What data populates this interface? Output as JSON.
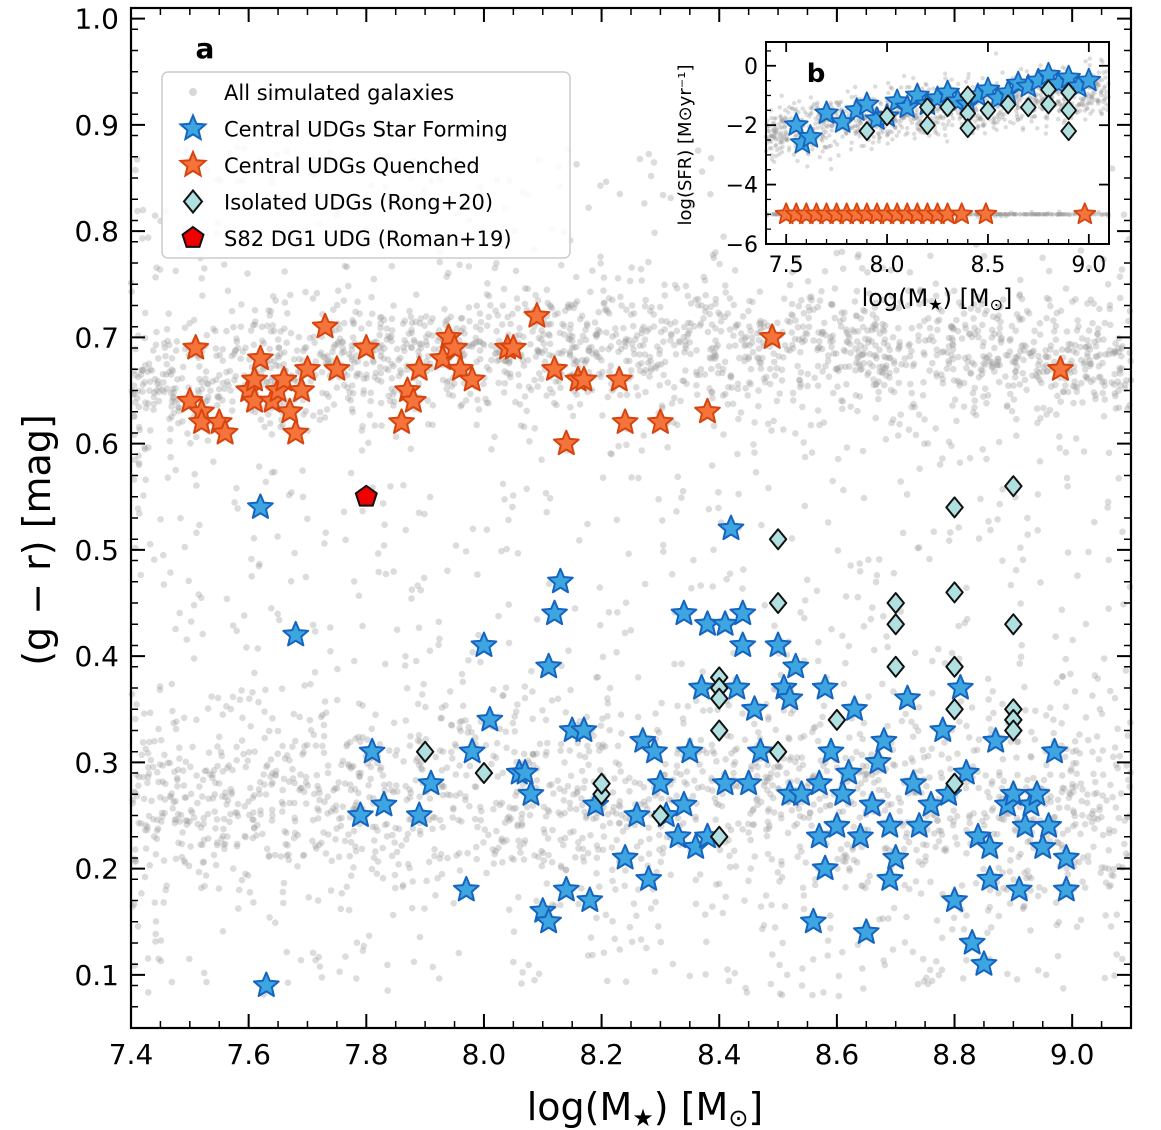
{
  "colors": {
    "background": "#ffffff",
    "all_galaxies": "#9a9a9a",
    "star_forming": "#3da5e0",
    "star_forming_edge": "#1565c0",
    "quenched": "#f5743c",
    "quenched_edge": "#d8440e",
    "isolated": "#b0e0e0",
    "isolated_edge": "#111111",
    "s82": "#ee0000",
    "s82_edge": "#111111"
  },
  "chart_data": [
    {
      "panel_label": "a",
      "type": "scatter",
      "xlabel": "log(M",
      "xlabel_sub": "★",
      "xlabel_tail": ") [M",
      "xlabel_sun": "⊙",
      "xlabel_end": "]",
      "ylabel": "(g − r) [mag]",
      "xlim": [
        7.4,
        9.1
      ],
      "ylim": [
        0.05,
        1.01
      ],
      "xticks": [
        "7.4",
        "7.6",
        "7.8",
        "8.0",
        "8.2",
        "8.4",
        "8.6",
        "8.8",
        "9.0"
      ],
      "yticks": [
        "0.1",
        "0.2",
        "0.3",
        "0.4",
        "0.5",
        "0.6",
        "0.7",
        "0.8",
        "0.9",
        "1.0"
      ],
      "legend_position": "upper-left",
      "legend": [
        {
          "label": "All simulated galaxies",
          "marker": "dot"
        },
        {
          "label": "Central UDGs Star Forming",
          "marker": "star-blue"
        },
        {
          "label": "Central UDGs Quenched",
          "marker": "star-orange"
        },
        {
          "label": "Isolated UDGs (Rong+20)",
          "marker": "diamond"
        },
        {
          "label": "S82 DG1 UDG (Roman+19)",
          "marker": "pentagon"
        }
      ],
      "background_distribution": {
        "description_clusters": [
          {
            "x_range": [
              7.4,
              9.1
            ],
            "y_center": "0.66 at 7.4 falling to 0.69 at 8.5",
            "y_sd": 0.03,
            "weight": 0.35
          },
          {
            "x_range": [
              7.4,
              9.1
            ],
            "y_center": "0.25 to 0.28",
            "y_sd": 0.04,
            "weight": 0.3
          },
          {
            "x_range": [
              7.4,
              9.1
            ],
            "y_center": "broad 0.1 to 0.8",
            "weight": 0.35
          }
        ]
      },
      "series": [
        {
          "name": "Central UDGs Quenched",
          "points": [
            [
              7.51,
              0.69
            ],
            [
              7.5,
              0.64
            ],
            [
              7.52,
              0.63
            ],
            [
              7.52,
              0.62
            ],
            [
              7.55,
              0.62
            ],
            [
              7.56,
              0.61
            ],
            [
              7.6,
              0.65
            ],
            [
              7.61,
              0.66
            ],
            [
              7.62,
              0.68
            ],
            [
              7.61,
              0.64
            ],
            [
              7.64,
              0.64
            ],
            [
              7.65,
              0.65
            ],
            [
              7.66,
              0.66
            ],
            [
              7.67,
              0.63
            ],
            [
              7.68,
              0.61
            ],
            [
              7.69,
              0.65
            ],
            [
              7.7,
              0.67
            ],
            [
              7.73,
              0.71
            ],
            [
              7.75,
              0.67
            ],
            [
              7.8,
              0.69
            ],
            [
              7.86,
              0.62
            ],
            [
              7.87,
              0.65
            ],
            [
              7.88,
              0.64
            ],
            [
              7.89,
              0.67
            ],
            [
              7.93,
              0.68
            ],
            [
              7.94,
              0.7
            ],
            [
              7.95,
              0.69
            ],
            [
              7.96,
              0.67
            ],
            [
              7.98,
              0.66
            ],
            [
              8.04,
              0.69
            ],
            [
              8.05,
              0.69
            ],
            [
              8.09,
              0.72
            ],
            [
              8.12,
              0.67
            ],
            [
              8.14,
              0.6
            ],
            [
              8.16,
              0.66
            ],
            [
              8.17,
              0.66
            ],
            [
              8.23,
              0.66
            ],
            [
              8.24,
              0.62
            ],
            [
              8.3,
              0.62
            ],
            [
              8.38,
              0.63
            ],
            [
              8.49,
              0.7
            ],
            [
              8.98,
              0.67
            ]
          ]
        },
        {
          "name": "Central UDGs Star Forming",
          "points": [
            [
              7.62,
              0.54
            ],
            [
              7.63,
              0.09
            ],
            [
              7.68,
              0.42
            ],
            [
              7.79,
              0.25
            ],
            [
              7.81,
              0.31
            ],
            [
              7.83,
              0.26
            ],
            [
              7.89,
              0.25
            ],
            [
              7.91,
              0.28
            ],
            [
              7.97,
              0.18
            ],
            [
              7.98,
              0.31
            ],
            [
              8.0,
              0.41
            ],
            [
              8.01,
              0.34
            ],
            [
              8.06,
              0.29
            ],
            [
              8.07,
              0.29
            ],
            [
              8.08,
              0.27
            ],
            [
              8.1,
              0.16
            ],
            [
              8.11,
              0.39
            ],
            [
              8.11,
              0.15
            ],
            [
              8.12,
              0.44
            ],
            [
              8.13,
              0.47
            ],
            [
              8.14,
              0.18
            ],
            [
              8.15,
              0.33
            ],
            [
              8.17,
              0.33
            ],
            [
              8.18,
              0.17
            ],
            [
              8.19,
              0.26
            ],
            [
              8.24,
              0.21
            ],
            [
              8.26,
              0.25
            ],
            [
              8.27,
              0.32
            ],
            [
              8.28,
              0.19
            ],
            [
              8.29,
              0.31
            ],
            [
              8.3,
              0.28
            ],
            [
              8.31,
              0.25
            ],
            [
              8.33,
              0.23
            ],
            [
              8.34,
              0.44
            ],
            [
              8.34,
              0.26
            ],
            [
              8.35,
              0.31
            ],
            [
              8.36,
              0.22
            ],
            [
              8.37,
              0.37
            ],
            [
              8.38,
              0.23
            ],
            [
              8.38,
              0.43
            ],
            [
              8.41,
              0.43
            ],
            [
              8.41,
              0.28
            ],
            [
              8.42,
              0.52
            ],
            [
              8.43,
              0.37
            ],
            [
              8.44,
              0.41
            ],
            [
              8.44,
              0.44
            ],
            [
              8.45,
              0.28
            ],
            [
              8.46,
              0.35
            ],
            [
              8.47,
              0.31
            ],
            [
              8.5,
              0.41
            ],
            [
              8.51,
              0.37
            ],
            [
              8.52,
              0.27
            ],
            [
              8.52,
              0.36
            ],
            [
              8.53,
              0.39
            ],
            [
              8.54,
              0.27
            ],
            [
              8.56,
              0.15
            ],
            [
              8.57,
              0.28
            ],
            [
              8.57,
              0.23
            ],
            [
              8.58,
              0.2
            ],
            [
              8.58,
              0.37
            ],
            [
              8.59,
              0.31
            ],
            [
              8.6,
              0.24
            ],
            [
              8.61,
              0.27
            ],
            [
              8.62,
              0.29
            ],
            [
              8.63,
              0.35
            ],
            [
              8.64,
              0.23
            ],
            [
              8.65,
              0.14
            ],
            [
              8.66,
              0.26
            ],
            [
              8.67,
              0.3
            ],
            [
              8.68,
              0.32
            ],
            [
              8.69,
              0.24
            ],
            [
              8.69,
              0.19
            ],
            [
              8.7,
              0.21
            ],
            [
              8.72,
              0.36
            ],
            [
              8.73,
              0.28
            ],
            [
              8.74,
              0.24
            ],
            [
              8.76,
              0.26
            ],
            [
              8.78,
              0.33
            ],
            [
              8.79,
              0.27
            ],
            [
              8.8,
              0.17
            ],
            [
              8.81,
              0.37
            ],
            [
              8.82,
              0.29
            ],
            [
              8.83,
              0.13
            ],
            [
              8.84,
              0.23
            ],
            [
              8.85,
              0.11
            ],
            [
              8.86,
              0.19
            ],
            [
              8.86,
              0.22
            ],
            [
              8.87,
              0.32
            ],
            [
              8.89,
              0.26
            ],
            [
              8.9,
              0.27
            ],
            [
              8.91,
              0.18
            ],
            [
              8.92,
              0.24
            ],
            [
              8.93,
              0.26
            ],
            [
              8.94,
              0.27
            ],
            [
              8.95,
              0.22
            ],
            [
              8.96,
              0.24
            ],
            [
              8.97,
              0.31
            ],
            [
              8.99,
              0.21
            ],
            [
              8.99,
              0.18
            ]
          ]
        },
        {
          "name": "Isolated UDGs (Rong+20)",
          "points": [
            [
              7.9,
              0.31
            ],
            [
              8.0,
              0.29
            ],
            [
              8.2,
              0.27
            ],
            [
              8.2,
              0.28
            ],
            [
              8.3,
              0.25
            ],
            [
              8.4,
              0.38
            ],
            [
              8.4,
              0.37
            ],
            [
              8.4,
              0.36
            ],
            [
              8.4,
              0.33
            ],
            [
              8.4,
              0.23
            ],
            [
              8.5,
              0.51
            ],
            [
              8.5,
              0.45
            ],
            [
              8.5,
              0.31
            ],
            [
              8.6,
              0.34
            ],
            [
              8.7,
              0.45
            ],
            [
              8.7,
              0.43
            ],
            [
              8.7,
              0.39
            ],
            [
              8.8,
              0.54
            ],
            [
              8.8,
              0.46
            ],
            [
              8.8,
              0.39
            ],
            [
              8.8,
              0.35
            ],
            [
              8.8,
              0.28
            ],
            [
              8.9,
              0.56
            ],
            [
              8.9,
              0.43
            ],
            [
              8.9,
              0.35
            ],
            [
              8.9,
              0.34
            ],
            [
              8.9,
              0.33
            ]
          ]
        },
        {
          "name": "S82 DG1 UDG (Roman+19)",
          "points": [
            [
              7.8,
              0.55
            ]
          ]
        }
      ]
    },
    {
      "panel_label": "b",
      "type": "scatter",
      "xlabel": "log(M",
      "xlabel_sub": "★",
      "xlabel_tail": ") [M",
      "xlabel_sun": "⊙",
      "xlabel_end": "]",
      "ylabel": "log(SFR) [M⊙yr⁻¹]",
      "xlim": [
        7.4,
        9.1
      ],
      "ylim": [
        -6,
        0.8
      ],
      "xticks": [
        "7.5",
        "8.0",
        "8.5",
        "9.0"
      ],
      "yticks": [
        "−6",
        "−4",
        "−2",
        "0"
      ],
      "background_distribution": {
        "description_clusters": [
          {
            "y_center": "−2.2 rising to −0.8",
            "y_sd": 0.4,
            "weight": 0.75
          },
          {
            "y_center": "−5.0 floor",
            "weight": 0.25
          }
        ]
      },
      "series": [
        {
          "name": "Central UDGs Star Forming",
          "points": [
            [
              7.55,
              -2.0
            ],
            [
              7.58,
              -2.6
            ],
            [
              7.62,
              -2.4
            ],
            [
              7.7,
              -1.6
            ],
            [
              7.78,
              -1.9
            ],
            [
              7.85,
              -1.5
            ],
            [
              7.9,
              -1.3
            ],
            [
              7.95,
              -1.8
            ],
            [
              8.0,
              -1.7
            ],
            [
              8.05,
              -1.2
            ],
            [
              8.1,
              -1.4
            ],
            [
              8.15,
              -1.0
            ],
            [
              8.2,
              -1.3
            ],
            [
              8.25,
              -1.1
            ],
            [
              8.3,
              -0.9
            ],
            [
              8.35,
              -1.2
            ],
            [
              8.4,
              -1.3
            ],
            [
              8.45,
              -1.0
            ],
            [
              8.5,
              -0.8
            ],
            [
              8.55,
              -1.1
            ],
            [
              8.6,
              -0.9
            ],
            [
              8.65,
              -0.6
            ],
            [
              8.7,
              -0.7
            ],
            [
              8.75,
              -0.5
            ],
            [
              8.8,
              -0.3
            ],
            [
              8.85,
              -0.6
            ],
            [
              8.9,
              -0.4
            ],
            [
              8.95,
              -0.7
            ],
            [
              9.0,
              -0.5
            ]
          ]
        },
        {
          "name": "Isolated UDGs (Rong+20)",
          "points": [
            [
              7.9,
              -2.2
            ],
            [
              8.0,
              -1.7
            ],
            [
              8.2,
              -1.4
            ],
            [
              8.2,
              -2.0
            ],
            [
              8.3,
              -1.4
            ],
            [
              8.4,
              -1.0
            ],
            [
              8.4,
              -1.6
            ],
            [
              8.4,
              -2.1
            ],
            [
              8.5,
              -1.5
            ],
            [
              8.6,
              -1.3
            ],
            [
              8.7,
              -1.4
            ],
            [
              8.8,
              -0.8
            ],
            [
              8.8,
              -1.3
            ],
            [
              8.9,
              -0.9
            ],
            [
              8.9,
              -1.5
            ],
            [
              8.9,
              -2.2
            ]
          ]
        },
        {
          "name": "Central UDGs Quenched",
          "points": [
            [
              7.5,
              -5.0
            ],
            [
              7.55,
              -5.0
            ],
            [
              7.6,
              -5.0
            ],
            [
              7.65,
              -5.0
            ],
            [
              7.7,
              -5.0
            ],
            [
              7.75,
              -5.0
            ],
            [
              7.8,
              -5.0
            ],
            [
              7.85,
              -5.0
            ],
            [
              7.9,
              -5.0
            ],
            [
              7.95,
              -5.0
            ],
            [
              8.0,
              -5.0
            ],
            [
              8.05,
              -5.0
            ],
            [
              8.1,
              -5.0
            ],
            [
              8.15,
              -5.0
            ],
            [
              8.2,
              -5.0
            ],
            [
              8.25,
              -5.0
            ],
            [
              8.3,
              -5.0
            ],
            [
              8.37,
              -5.0
            ],
            [
              8.49,
              -5.0
            ],
            [
              8.98,
              -5.0
            ]
          ]
        }
      ]
    }
  ]
}
